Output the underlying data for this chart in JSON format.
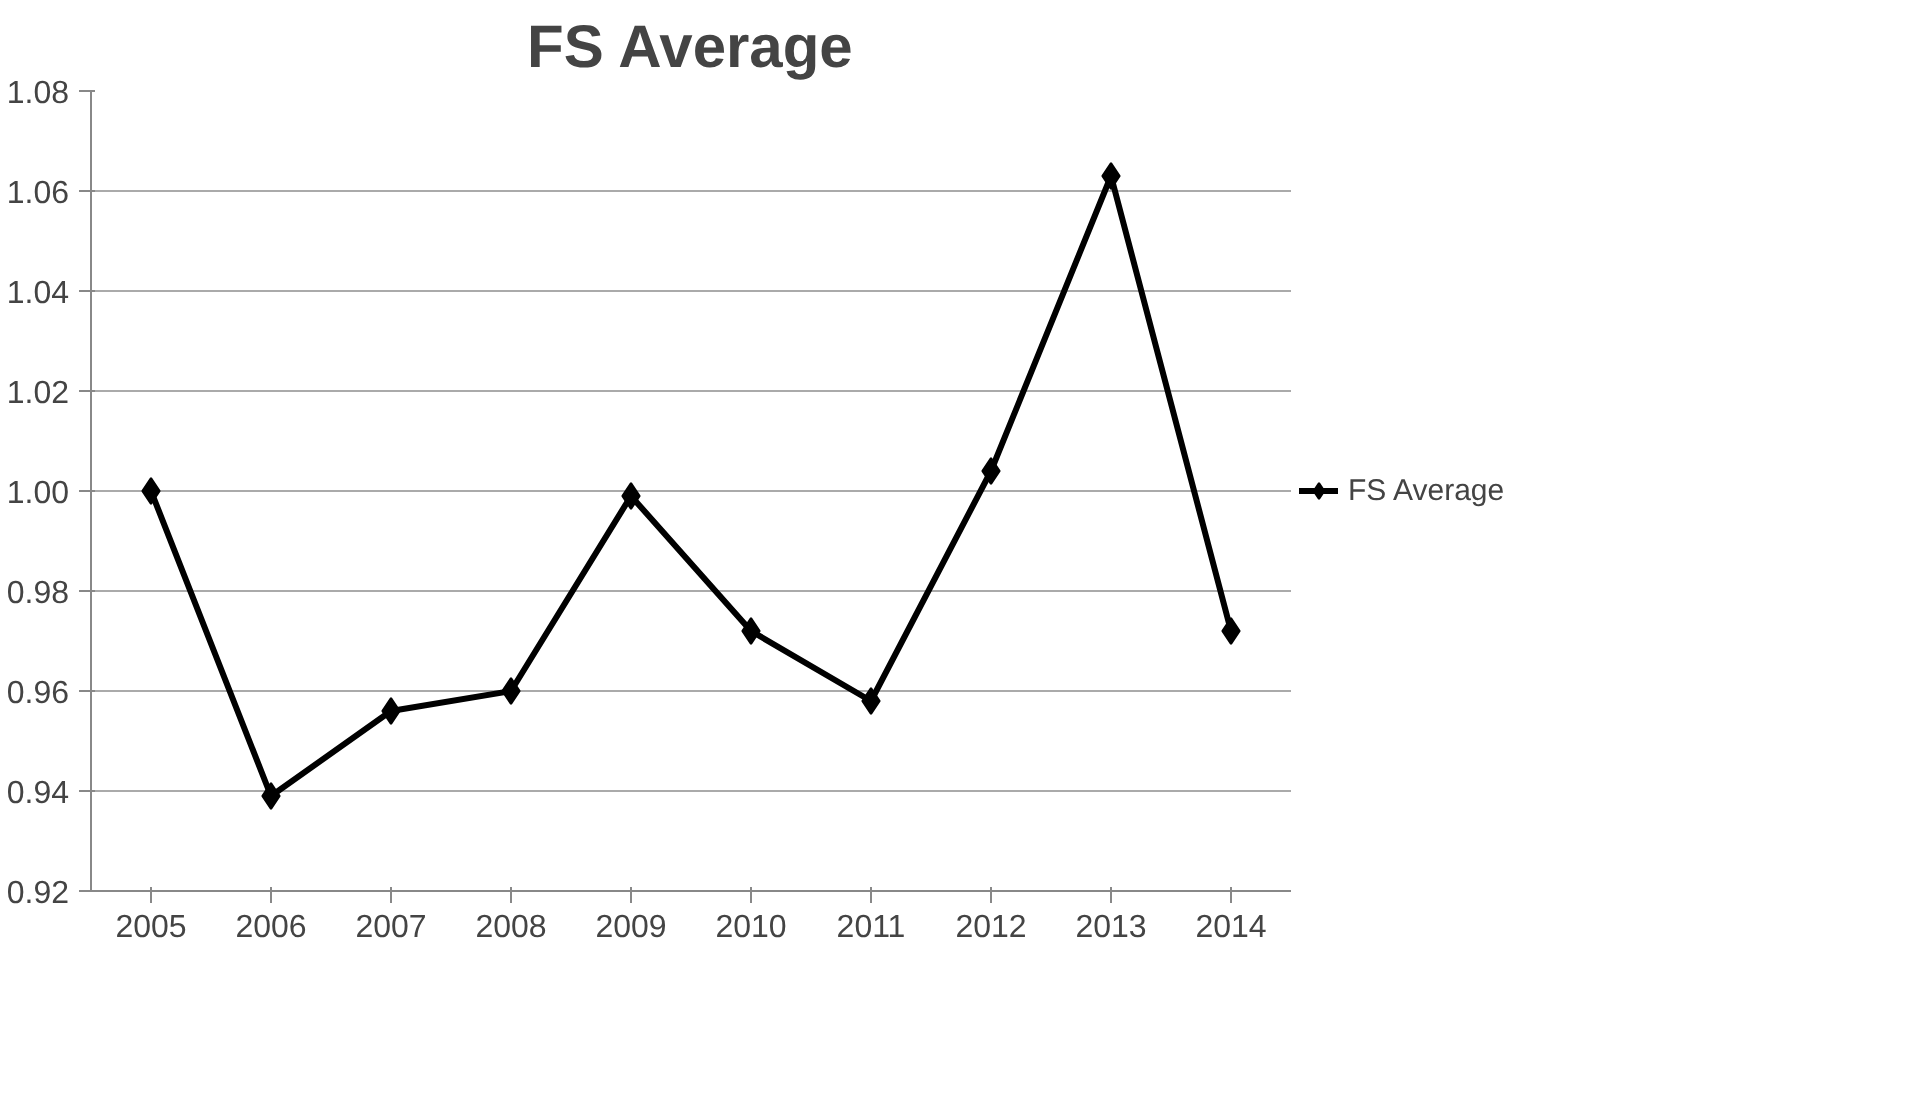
{
  "chart_data": {
    "type": "line",
    "title": "FS Average",
    "categories": [
      "2005",
      "2006",
      "2007",
      "2008",
      "2009",
      "2010",
      "2011",
      "2012",
      "2013",
      "2014"
    ],
    "series": [
      {
        "name": "FS Average",
        "color": "#000000",
        "values": [
          1.0,
          0.939,
          0.956,
          0.96,
          0.999,
          0.972,
          0.958,
          1.004,
          1.063,
          0.972
        ]
      }
    ],
    "ylim": [
      0.92,
      1.08
    ],
    "yticks": [
      0.92,
      0.94,
      0.96,
      0.98,
      {
        "value": 1.0,
        "label": "1.00"
      },
      1.02,
      1.04,
      1.06,
      1.08
    ],
    "grid": "y",
    "legend": "right",
    "marker": "diamond",
    "line_style": "solid"
  }
}
